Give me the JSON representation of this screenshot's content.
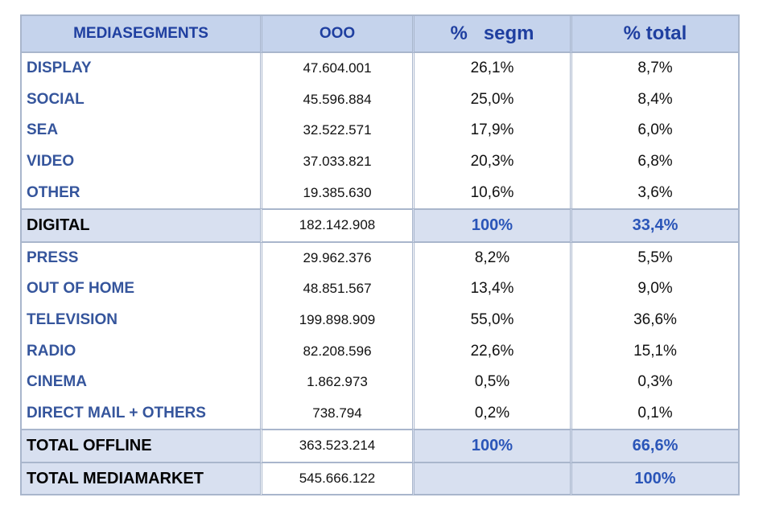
{
  "headers": {
    "segment": "MEDIASEGMENTS",
    "ooo": "OOO",
    "pct_segm": "%   segm",
    "pct_total": "% total"
  },
  "digital_rows": [
    {
      "label": "DISPLAY",
      "value": "47.604.001",
      "segm": "26,1%",
      "total": "8,7%"
    },
    {
      "label": "SOCIAL",
      "value": "45.596.884",
      "segm": "25,0%",
      "total": "8,4%"
    },
    {
      "label": "SEA",
      "value": "32.522.571",
      "segm": "17,9%",
      "total": "6,0%"
    },
    {
      "label": "VIDEO",
      "value": "37.033.821",
      "segm": "20,3%",
      "total": "6,8%"
    },
    {
      "label": "OTHER",
      "value": "19.385.630",
      "segm": "10,6%",
      "total": "3,6%"
    }
  ],
  "digital_total": {
    "label": "DIGITAL",
    "value": "182.142.908",
    "segm": "100%",
    "total": "33,4%"
  },
  "offline_rows": [
    {
      "label": "PRESS",
      "value": "29.962.376",
      "segm": "8,2%",
      "total": "5,5%"
    },
    {
      "label": "OUT OF HOME",
      "value": "48.851.567",
      "segm": "13,4%",
      "total": "9,0%"
    },
    {
      "label": "TELEVISION",
      "value": "199.898.909",
      "segm": "55,0%",
      "total": "36,6%"
    },
    {
      "label": "RADIO",
      "value": "82.208.596",
      "segm": "22,6%",
      "total": "15,1%"
    },
    {
      "label": "CINEMA",
      "value": "1.862.973",
      "segm": "0,5%",
      "total": "0,3%"
    },
    {
      "label": "DIRECT MAIL + OTHERS",
      "value": "738.794",
      "segm": "0,2%",
      "total": "0,1%"
    }
  ],
  "offline_total": {
    "label": "TOTAL OFFLINE",
    "value": "363.523.214",
    "segm": "100%",
    "total": "66,6%"
  },
  "market_total": {
    "label": "TOTAL MEDIAMARKET",
    "value": "545.666.122",
    "segm": "",
    "total": "100%"
  }
}
